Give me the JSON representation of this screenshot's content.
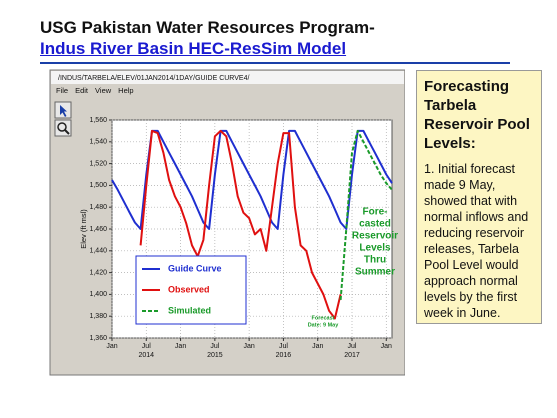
{
  "slide": {
    "title_line1": "USG Pakistan Water Resources Program-",
    "title_line2": "Indus River Basin HEC-ResSim Model"
  },
  "window": {
    "title": "/INDUS/TARBELA/ELEV/01JAN2014/1DAY/GUIDE CURVE4/",
    "menu": [
      "File",
      "Edit",
      "View",
      "Help"
    ]
  },
  "side_box": {
    "heading": "Forecasting Tarbela Reservoir Pool Levels:",
    "body": "1. Initial forecast made 9 May, showed that with normal inflows and reducing reservoir releases, Tarbela Pool Level would approach normal levels by the first week in June."
  },
  "chart_data": {
    "type": "line",
    "y_label": "Elev (ft msl)",
    "x": [
      "2014-01",
      "2014-02",
      "2014-03",
      "2014-04",
      "2014-05",
      "2014-06",
      "2014-07",
      "2014-08",
      "2014-09",
      "2014-10",
      "2014-11",
      "2014-12",
      "2015-01",
      "2015-02",
      "2015-03",
      "2015-04",
      "2015-05",
      "2015-06",
      "2015-07",
      "2015-08",
      "2015-09",
      "2015-10",
      "2015-11",
      "2015-12",
      "2016-01",
      "2016-02",
      "2016-03",
      "2016-04",
      "2016-05",
      "2016-06",
      "2016-07",
      "2016-08",
      "2016-09",
      "2016-10",
      "2016-11",
      "2016-12",
      "2017-01",
      "2017-02",
      "2017-03",
      "2017-04",
      "2017-05",
      "2017-06",
      "2017-07",
      "2017-08",
      "2017-09",
      "2017-10",
      "2017-11",
      "2017-12",
      "2018-01",
      "2018-02"
    ],
    "series": [
      {
        "name": "Guide Curve",
        "color": "#1f2fd0",
        "dash": false,
        "values": [
          1505,
          1496,
          1486,
          1476,
          1466,
          1460,
          1510,
          1550,
          1550,
          1540,
          1530,
          1520,
          1510,
          1500,
          1490,
          1478,
          1466,
          1460,
          1510,
          1550,
          1550,
          1540,
          1530,
          1520,
          1510,
          1500,
          1490,
          1478,
          1466,
          1460,
          1510,
          1550,
          1550,
          1540,
          1530,
          1520,
          1510,
          1500,
          1490,
          1478,
          1466,
          1460,
          1510,
          1550,
          1550,
          1540,
          1530,
          1520,
          1510,
          1502
        ]
      },
      {
        "name": "Observed",
        "color": "#e01010",
        "dash": false,
        "values": [
          null,
          null,
          null,
          null,
          null,
          1445,
          1500,
          1550,
          1548,
          1530,
          1505,
          1490,
          1480,
          1465,
          1445,
          1435,
          1450,
          1500,
          1545,
          1550,
          1545,
          1520,
          1490,
          1475,
          1470,
          1455,
          1460,
          1440,
          1480,
          1520,
          1548,
          1548,
          1480,
          1445,
          1440,
          1420,
          1410,
          1400,
          1385,
          1378,
          1400,
          null,
          null,
          null,
          null,
          null,
          null,
          null,
          null,
          null
        ]
      },
      {
        "name": "Simulated",
        "color": "#1a9a2a",
        "dash": true,
        "values": [
          null,
          null,
          null,
          null,
          null,
          null,
          null,
          null,
          null,
          null,
          null,
          null,
          null,
          null,
          null,
          null,
          null,
          null,
          null,
          null,
          null,
          null,
          null,
          null,
          null,
          null,
          null,
          null,
          null,
          null,
          null,
          null,
          null,
          null,
          null,
          null,
          null,
          null,
          null,
          null,
          1395,
          1460,
          1530,
          1550,
          1540,
          1530,
          1520,
          1510,
          1502,
          1496
        ]
      }
    ],
    "xlim": [
      "2014-01",
      "2018-02"
    ],
    "ylim": [
      1360,
      1560
    ],
    "yticks": [
      {
        "value": 1360,
        "label": "1,360"
      },
      {
        "value": 1380,
        "label": "1,380"
      },
      {
        "value": 1400,
        "label": "1,400"
      },
      {
        "value": 1420,
        "label": "1,420"
      },
      {
        "value": 1440,
        "label": "1,440"
      },
      {
        "value": 1460,
        "label": "1,460"
      },
      {
        "value": 1480,
        "label": "1,480"
      },
      {
        "value": 1500,
        "label": "1,500"
      },
      {
        "value": 1520,
        "label": "1,520"
      },
      {
        "value": 1540,
        "label": "1,540"
      },
      {
        "value": 1560,
        "label": "1,560"
      }
    ],
    "xticks": [
      {
        "value": "2014-01",
        "label": "Jan"
      },
      {
        "value": "2014-07",
        "label": "Jul"
      },
      {
        "value": "2015-01",
        "label": "Jan"
      },
      {
        "value": "2015-07",
        "label": "Jul"
      },
      {
        "value": "2016-01",
        "label": "Jan"
      },
      {
        "value": "2016-07",
        "label": "Jul"
      },
      {
        "value": "2017-01",
        "label": "Jan"
      },
      {
        "value": "2017-07",
        "label": "Jul"
      },
      {
        "value": "2018-01",
        "label": "Jan"
      }
    ],
    "xtick_years": [
      {
        "value": "2014-07",
        "label": "2014"
      },
      {
        "value": "2015-07",
        "label": "2015"
      },
      {
        "value": "2016-07",
        "label": "2016"
      },
      {
        "value": "2017-07",
        "label": "2017"
      }
    ],
    "grid": true,
    "legend": "lower left",
    "annotations": [
      {
        "lines": [
          "Fore-",
          "casted",
          "Reservoir",
          "Levels",
          "Thru",
          "Summer"
        ],
        "color": "#1a9a2a"
      },
      {
        "lines": [
          "Forecast",
          "Date: 9 May"
        ],
        "color": "#1a9a2a"
      }
    ]
  }
}
